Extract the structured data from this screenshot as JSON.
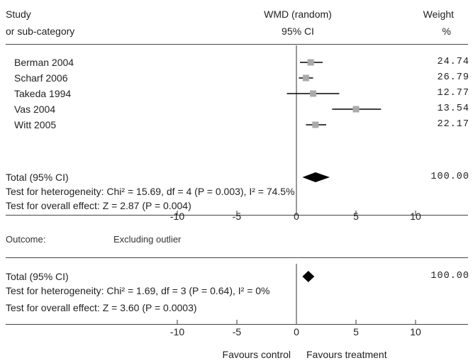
{
  "header": {
    "col_study": "Study",
    "col_study_sub": "or sub-category",
    "col_effect": "WMD (random)",
    "col_effect_sub": "95% CI",
    "col_weight": "Weight",
    "col_weight_sub": "%"
  },
  "chart_data": {
    "type": "forest",
    "xlim": [
      -10,
      10
    ],
    "xticks": [
      "-10",
      "-5",
      "0",
      "5",
      "10"
    ],
    "xtick_values": [
      -10,
      -5,
      0,
      5,
      10
    ],
    "marker_color": "#aaaaaa",
    "diamond_color": "#000000",
    "studies": [
      {
        "name": "Berman 2004",
        "estimate": 1.2,
        "ci": [
          0.3,
          2.2
        ],
        "weight": "24.74"
      },
      {
        "name": "Scharf 2006",
        "estimate": 0.8,
        "ci": [
          0.2,
          1.4
        ],
        "weight": "26.79"
      },
      {
        "name": "Takeda 1994",
        "estimate": 1.4,
        "ci": [
          -0.8,
          3.6
        ],
        "weight": "12.77"
      },
      {
        "name": "Vas 2004",
        "estimate": 5.0,
        "ci": [
          3.0,
          7.1
        ],
        "weight": "13.54"
      },
      {
        "name": "Witt 2005",
        "estimate": 1.6,
        "ci": [
          0.8,
          2.5
        ],
        "weight": "22.17"
      }
    ],
    "overall": {
      "label": "Total (95% CI)",
      "estimate": 1.6,
      "ci": [
        0.5,
        2.8
      ],
      "weight": "100.00",
      "heterogeneity": "Test for heterogeneity: Chi² = 15.69, df = 4 (P = 0.003), I² = 74.5%",
      "overall_effect": "Test for overall effect: Z = 2.87 (P = 0.004)"
    },
    "subgroup": {
      "outcome_label": "Outcome:",
      "outcome_value": "Excluding outlier",
      "label": "Total (95% CI)",
      "estimate": 1.0,
      "ci": [
        0.5,
        1.5
      ],
      "weight": "100.00",
      "heterogeneity": "Test for heterogeneity: Chi² = 1.69, df = 3 (P = 0.64), I² = 0%",
      "overall_effect": "Test for overall effect: Z = 3.60 (P = 0.0003)"
    },
    "footer": {
      "favours_left": "Favours control",
      "favours_right": "Favours treatment"
    }
  }
}
